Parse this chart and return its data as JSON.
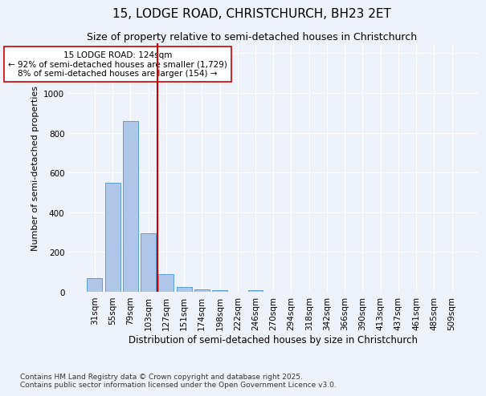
{
  "title1": "15, LODGE ROAD, CHRISTCHURCH, BH23 2ET",
  "title2": "Size of property relative to semi-detached houses in Christchurch",
  "xlabel": "Distribution of semi-detached houses by size in Christchurch",
  "ylabel": "Number of semi-detached properties",
  "categories": [
    "31sqm",
    "55sqm",
    "79sqm",
    "103sqm",
    "127sqm",
    "151sqm",
    "174sqm",
    "198sqm",
    "222sqm",
    "246sqm",
    "270sqm",
    "294sqm",
    "318sqm",
    "342sqm",
    "366sqm",
    "390sqm",
    "413sqm",
    "437sqm",
    "461sqm",
    "485sqm",
    "509sqm"
  ],
  "values": [
    70,
    548,
    858,
    295,
    90,
    25,
    12,
    10,
    0,
    10,
    0,
    0,
    0,
    0,
    0,
    0,
    0,
    0,
    0,
    0,
    0
  ],
  "bar_color": "#aec6e8",
  "bar_edge_color": "#5a9fd4",
  "highlight_line_color": "#cc0000",
  "annotation_text": "15 LODGE ROAD: 124sqm\n← 92% of semi-detached houses are smaller (1,729)\n8% of semi-detached houses are larger (154) →",
  "annotation_box_color": "#ffffff",
  "annotation_box_edge": "#cc0000",
  "ylim": [
    0,
    1250
  ],
  "yticks": [
    0,
    200,
    400,
    600,
    800,
    1000,
    1200
  ],
  "footer": "Contains HM Land Registry data © Crown copyright and database right 2025.\nContains public sector information licensed under the Open Government Licence v3.0.",
  "background_color": "#eef2fb",
  "grid_color": "#ffffff",
  "font_family": "DejaVu Sans",
  "title1_fontsize": 11,
  "title2_fontsize": 9,
  "ylabel_fontsize": 8,
  "xlabel_fontsize": 8.5,
  "tick_fontsize": 7.5,
  "footer_fontsize": 6.5,
  "annotation_fontsize": 7.5
}
